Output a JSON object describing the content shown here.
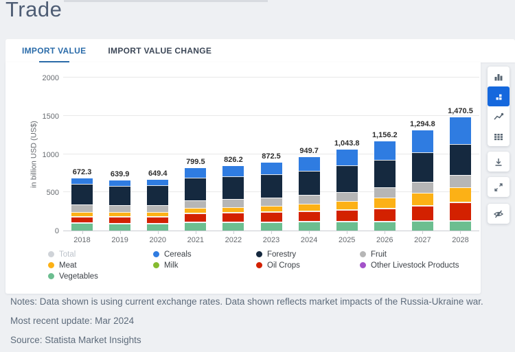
{
  "page": {
    "title": "Trade",
    "background": "#eef0f3"
  },
  "tabs": [
    {
      "label": "IMPORT VALUE",
      "active": true
    },
    {
      "label": "IMPORT VALUE CHANGE",
      "active": false
    }
  ],
  "toolbar": {
    "view_buttons": [
      {
        "icon": "column-chart-icon",
        "active": false
      },
      {
        "icon": "stacked-column-chart-icon",
        "active": true
      },
      {
        "icon": "line-chart-icon",
        "active": false
      },
      {
        "icon": "data-table-icon",
        "active": false
      }
    ],
    "action_buttons": [
      {
        "icon": "download-icon"
      },
      {
        "icon": "expand-icon"
      },
      {
        "icon": "hide-eye-icon"
      }
    ],
    "active_color": "#1568dd",
    "icon_color": "#566471"
  },
  "chart_data": {
    "type": "bar",
    "stacked": true,
    "ylabel": "in billion USD (US$)",
    "ylim": [
      0,
      2000
    ],
    "yticks": [
      0,
      500,
      1000,
      1500,
      2000
    ],
    "grid": true,
    "legend_position": "bottom",
    "categories": [
      "2018",
      "2019",
      "2020",
      "2021",
      "2022",
      "2023",
      "2024",
      "2025",
      "2026",
      "2027",
      "2028"
    ],
    "totals": [
      672.3,
      639.9,
      649.4,
      799.5,
      826.2,
      872.5,
      949.7,
      1043.8,
      1156.2,
      1294.8,
      1470.5
    ],
    "total_labels": [
      "672.3",
      "639.9",
      "649.4",
      "799.5",
      "826.2",
      "872.5",
      "949.7",
      "1,043.8",
      "1,156.2",
      "1,294.8",
      "1,470.5"
    ],
    "series": [
      {
        "key": "vegetables",
        "name": "Vegetables",
        "color": "#6cbe90",
        "values": [
          95,
          92,
          94,
          107,
          110,
          112,
          114,
          116,
          119,
          123,
          127
        ]
      },
      {
        "key": "other_livestock",
        "name": "Other Livestock Products",
        "color": "#a352c9",
        "values": [
          2,
          2,
          2,
          2,
          2,
          2,
          2,
          3,
          3,
          3,
          3
        ]
      },
      {
        "key": "oil_crops",
        "name": "Oil Crops",
        "color": "#d32100",
        "values": [
          78,
          76,
          77,
          104,
          111,
          117,
          130,
          143,
          163,
          193,
          228
        ]
      },
      {
        "key": "milk",
        "name": "Milk",
        "color": "#85bb30",
        "values": [
          3,
          3,
          3,
          3,
          3,
          3,
          3,
          3,
          3,
          4,
          4
        ]
      },
      {
        "key": "meat",
        "name": "Meat",
        "color": "#fcb116",
        "values": [
          55,
          52,
          53,
          65,
          70,
          76,
          90,
          108,
          133,
          161,
          195
        ]
      },
      {
        "key": "fruit",
        "name": "Fruit",
        "color": "#b6b6b6",
        "values": [
          94,
          90,
          90,
          101,
          103,
          107,
          111,
          122,
          132,
          144,
          156
        ]
      },
      {
        "key": "forestry",
        "name": "Forestry",
        "color": "#15293f",
        "values": [
          272,
          258,
          259,
          294,
          297,
          307,
          317,
          342,
          362,
          384,
          409
        ]
      },
      {
        "key": "cereals",
        "name": "Cereals",
        "color": "#2f7ce1",
        "values": [
          73.3,
          66.9,
          71.4,
          123.5,
          130.2,
          148.5,
          182.7,
          206.8,
          241.2,
          282.8,
          348.5
        ]
      },
      {
        "key": "total",
        "name": "Total",
        "color": "#cfd3d8",
        "hidden": true,
        "values": [
          672.3,
          639.9,
          649.4,
          799.5,
          826.2,
          872.5,
          949.7,
          1043.8,
          1156.2,
          1294.8,
          1470.5
        ]
      }
    ],
    "legend": [
      {
        "key": "total",
        "label": "Total",
        "color": "#cfd3d8",
        "disabled": true
      },
      {
        "key": "cereals",
        "label": "Cereals",
        "color": "#2f7ce1",
        "disabled": false
      },
      {
        "key": "forestry",
        "label": "Forestry",
        "color": "#15293f",
        "disabled": false
      },
      {
        "key": "fruit",
        "label": "Fruit",
        "color": "#b6b6b6",
        "disabled": false
      },
      {
        "key": "meat",
        "label": "Meat",
        "color": "#fcb116",
        "disabled": false
      },
      {
        "key": "milk",
        "label": "Milk",
        "color": "#85bb30",
        "disabled": false
      },
      {
        "key": "oil_crops",
        "label": "Oil Crops",
        "color": "#d32100",
        "disabled": false
      },
      {
        "key": "other_livestock",
        "label": "Other Livestock Products",
        "color": "#a352c9",
        "disabled": false
      },
      {
        "key": "vegetables",
        "label": "Vegetables",
        "color": "#6cbe90",
        "disabled": false
      }
    ]
  },
  "notes": {
    "line1": "Notes: Data shown is using current exchange rates. Data shown reflects market impacts of the Russia-Ukraine war.",
    "update": "Most recent update: Mar 2024",
    "source": "Source: Statista Market Insights"
  }
}
